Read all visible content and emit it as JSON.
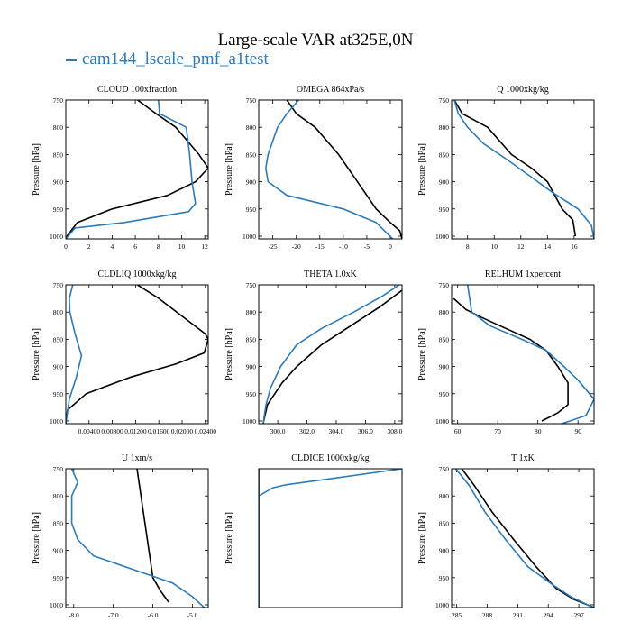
{
  "title": "Large-scale VAR at325E,0N",
  "legend": {
    "label": "cam144_lscale_pmf_a1test",
    "color": "#2b7bb9"
  },
  "colors": {
    "control": "#000000",
    "test": "#2b7bb9"
  },
  "chart_data": [
    {
      "type": "line",
      "title": "CLOUD  100xfraction",
      "ylabel": "Pressure [hPa]",
      "xlim": [
        0,
        12.3
      ],
      "ylim": [
        1005,
        750
      ],
      "xticks": [
        0,
        2,
        4,
        6,
        8,
        10,
        12
      ],
      "xtick_labels": [
        "0",
        "2",
        "4",
        "6",
        "8",
        "10",
        "12"
      ],
      "yticks": [
        750,
        800,
        850,
        900,
        950,
        1000
      ],
      "ytick_labels": [
        "750",
        "800",
        "850",
        "900",
        "950",
        "1000"
      ],
      "series": [
        {
          "name": "control",
          "color": "#000000",
          "x": [
            6.2,
            7.8,
            9.5,
            11.5,
            12.3,
            11.2,
            8.8,
            4,
            1,
            0.1,
            0
          ],
          "y": [
            750,
            775,
            800,
            850,
            875,
            900,
            925,
            950,
            975,
            1000,
            1005
          ]
        },
        {
          "name": "test",
          "color": "#2b7bb9",
          "x": [
            8,
            8.1,
            10.4,
            10.7,
            10.8,
            10.9,
            11.2,
            10.6,
            5,
            0.8,
            0
          ],
          "y": [
            750,
            775,
            800,
            850,
            875,
            900,
            940,
            955,
            975,
            985,
            1005
          ]
        }
      ]
    },
    {
      "type": "line",
      "title": "OMEGA  864xPa/s",
      "ylabel": "Pressure [hPa]",
      "xlim": [
        -28,
        2.5
      ],
      "ylim": [
        1005,
        750
      ],
      "xticks": [
        -25,
        -20,
        -15,
        -10,
        -5,
        0
      ],
      "xtick_labels": [
        "-25",
        "-20",
        "-15",
        "-10",
        "-5",
        "0"
      ],
      "yticks": [
        750,
        800,
        850,
        900,
        950,
        1000
      ],
      "ytick_labels": [
        "750",
        "800",
        "850",
        "900",
        "950",
        "1000"
      ],
      "series": [
        {
          "name": "control",
          "color": "#000000",
          "x": [
            -22,
            -20,
            -16,
            -11,
            -7,
            -3,
            0,
            2,
            2.5
          ],
          "y": [
            750,
            775,
            800,
            850,
            900,
            950,
            975,
            990,
            1005
          ]
        },
        {
          "name": "test",
          "color": "#2b7bb9",
          "x": [
            -19.5,
            -22,
            -24,
            -26,
            -26.5,
            -26,
            -22,
            -10,
            -3,
            0.5
          ],
          "y": [
            750,
            775,
            800,
            850,
            875,
            900,
            925,
            950,
            975,
            1005
          ]
        }
      ]
    },
    {
      "type": "line",
      "title": "Q  1000xkg/kg",
      "ylabel": "Pressure [hPa]",
      "xlim": [
        6.8,
        17.5
      ],
      "ylim": [
        1005,
        750
      ],
      "xticks": [
        8,
        10,
        12,
        14,
        16
      ],
      "xtick_labels": [
        "8",
        "10",
        "12",
        "14",
        "16"
      ],
      "yticks": [
        750,
        800,
        850,
        900,
        950,
        1000
      ],
      "ytick_labels": [
        "750",
        "800",
        "850",
        "900",
        "950",
        "1000"
      ],
      "series": [
        {
          "name": "control",
          "color": "#000000",
          "x": [
            7,
            7.6,
            9.5,
            11.3,
            12.8,
            14,
            15.1,
            15.9,
            16.1
          ],
          "y": [
            750,
            775,
            800,
            850,
            875,
            900,
            950,
            970,
            1000
          ]
        },
        {
          "name": "test",
          "color": "#2b7bb9",
          "x": [
            7,
            7.3,
            8,
            9.2,
            11,
            12.7,
            14.4,
            16.3,
            17.3,
            17.5
          ],
          "y": [
            750,
            775,
            800,
            830,
            860,
            890,
            920,
            950,
            980,
            1005
          ]
        }
      ]
    },
    {
      "type": "line",
      "title": "CLDLIQ  1000xkg/kg",
      "ylabel": "Pressure [hPa]",
      "xlim": [
        0,
        0.0245
      ],
      "ylim": [
        1005,
        750
      ],
      "xticks": [
        0.004,
        0.008,
        0.012,
        0.016,
        0.02,
        0.024
      ],
      "xtick_labels": [
        "0.00400",
        "0.00800",
        "0.01200",
        "0.01600",
        "0.02000",
        "0.02400"
      ],
      "yticks": [
        750,
        800,
        850,
        900,
        950,
        1000
      ],
      "ytick_labels": [
        "750",
        "800",
        "850",
        "900",
        "950",
        "1000"
      ],
      "series": [
        {
          "name": "control",
          "color": "#000000",
          "x": [
            0.0123,
            0.016,
            0.024,
            0.0245,
            0.0238,
            0.019,
            0.011,
            0.0035,
            0.0003,
            0
          ],
          "y": [
            750,
            775,
            840,
            850,
            875,
            895,
            920,
            950,
            980,
            1005
          ]
        },
        {
          "name": "test",
          "color": "#2b7bb9",
          "x": [
            0.0012,
            0.0006,
            0.0007,
            0.0016,
            0.0027,
            0.0018,
            0.0006,
            0.0002,
            0
          ],
          "y": [
            750,
            775,
            800,
            840,
            880,
            920,
            960,
            990,
            1005
          ]
        }
      ]
    },
    {
      "type": "line",
      "title": "THETA  1.0xK",
      "ylabel": "Pressure [hPa]",
      "xlim": [
        298.7,
        308.5
      ],
      "ylim": [
        1005,
        750
      ],
      "xticks": [
        300,
        302,
        304,
        306,
        308
      ],
      "xtick_labels": [
        "300.0",
        "302.0",
        "304.0",
        "306.0",
        "308.0"
      ],
      "yticks": [
        750,
        800,
        850,
        900,
        950,
        1000
      ],
      "ytick_labels": [
        "750",
        "800",
        "850",
        "900",
        "950",
        "1000"
      ],
      "series": [
        {
          "name": "control",
          "color": "#000000",
          "x": [
            308.5,
            307,
            305,
            303,
            301.3,
            300.3,
            299.3,
            299
          ],
          "y": [
            760,
            790,
            825,
            860,
            900,
            930,
            970,
            1005
          ]
        },
        {
          "name": "test",
          "color": "#2b7bb9",
          "x": [
            308.3,
            307.2,
            305.2,
            303,
            301.3,
            300.2,
            299.5,
            299.2,
            299
          ],
          "y": [
            750,
            770,
            800,
            830,
            860,
            900,
            940,
            970,
            1005
          ]
        }
      ]
    },
    {
      "type": "line",
      "title": "RELHUM  1xpercent",
      "ylabel": "Pressure [hPa]",
      "xlim": [
        58.5,
        94
      ],
      "ylim": [
        1005,
        750
      ],
      "xticks": [
        60,
        70,
        80,
        90
      ],
      "xtick_labels": [
        "60",
        "70",
        "80",
        "90"
      ],
      "yticks": [
        750,
        800,
        850,
        900,
        950,
        1000
      ],
      "ytick_labels": [
        "750",
        "800",
        "850",
        "900",
        "950",
        "1000"
      ],
      "series": [
        {
          "name": "control",
          "color": "#000000",
          "x": [
            59,
            62,
            66,
            72,
            78,
            82,
            85,
            87.5,
            87.5,
            85,
            81
          ],
          "y": [
            775,
            795,
            810,
            830,
            850,
            870,
            900,
            930,
            970,
            985,
            1000
          ]
        },
        {
          "name": "test",
          "color": "#2b7bb9",
          "x": [
            62.5,
            63,
            63.5,
            68,
            76,
            82,
            86.5,
            90,
            94,
            92,
            86
          ],
          "y": [
            750,
            775,
            800,
            825,
            850,
            870,
            900,
            925,
            960,
            990,
            1005
          ]
        }
      ]
    },
    {
      "type": "line",
      "title": "U  1xm/s",
      "ylabel": "Pressure [hPa]",
      "xlim": [
        -8.2,
        -4.6
      ],
      "ylim": [
        1005,
        750
      ],
      "xticks": [
        -8,
        -7,
        -6,
        -5
      ],
      "xtick_labels": [
        "-8.0",
        "-7.0",
        "-6.0",
        "-5.0"
      ],
      "yticks": [
        750,
        800,
        850,
        900,
        950,
        1000
      ],
      "ytick_labels": [
        "750",
        "800",
        "850",
        "900",
        "950",
        "1000"
      ],
      "series": [
        {
          "name": "control",
          "color": "#000000",
          "x": [
            -6.4,
            -6.3,
            -6.2,
            -6.1,
            -6,
            -5.8,
            -5.6
          ],
          "y": [
            750,
            800,
            850,
            900,
            950,
            975,
            995
          ]
        },
        {
          "name": "test",
          "color": "#2b7bb9",
          "x": [
            -8.05,
            -7.9,
            -8.05,
            -8.05,
            -7.9,
            -7.5,
            -6.5,
            -5.5,
            -5,
            -4.7
          ],
          "y": [
            750,
            775,
            800,
            850,
            880,
            910,
            935,
            960,
            985,
            1005
          ]
        }
      ]
    },
    {
      "type": "line",
      "title": "CLDICE  1000xkg/kg",
      "ylabel": "Pressure [hPa]",
      "xlim": [
        0,
        1
      ],
      "ylim": [
        1005,
        750
      ],
      "xticks": [],
      "xtick_labels": [],
      "yticks": [],
      "ytick_labels": [],
      "series": [
        {
          "name": "control",
          "color": "#000000",
          "x": [
            0,
            0
          ],
          "y": [
            750,
            1005
          ]
        },
        {
          "name": "test",
          "color": "#2b7bb9",
          "x": [
            1,
            0.18,
            0.1,
            0,
            0
          ],
          "y": [
            750,
            780,
            785,
            800,
            1005
          ]
        }
      ]
    },
    {
      "type": "line",
      "title": "T  1xK",
      "ylabel": "Pressure [hPa]",
      "xlim": [
        284.5,
        298.5
      ],
      "ylim": [
        1005,
        750
      ],
      "xticks": [
        285,
        288,
        291,
        294,
        297
      ],
      "xtick_labels": [
        "285",
        "288",
        "291",
        "294",
        "297"
      ],
      "yticks": [
        750,
        800,
        850,
        900,
        950,
        1000
      ],
      "ytick_labels": [
        "750",
        "800",
        "850",
        "900",
        "950",
        "1000"
      ],
      "series": [
        {
          "name": "control",
          "color": "#000000",
          "x": [
            285.5,
            286.7,
            288.5,
            290.6,
            292.8,
            294.8,
            296.5,
            298.5
          ],
          "y": [
            750,
            780,
            830,
            880,
            930,
            970,
            990,
            1005
          ]
        },
        {
          "name": "test",
          "color": "#2b7bb9",
          "x": [
            284.9,
            286.2,
            287.8,
            289.8,
            292,
            294.2,
            296.2,
            298.4
          ],
          "y": [
            750,
            780,
            830,
            880,
            930,
            960,
            985,
            1005
          ]
        }
      ]
    }
  ]
}
